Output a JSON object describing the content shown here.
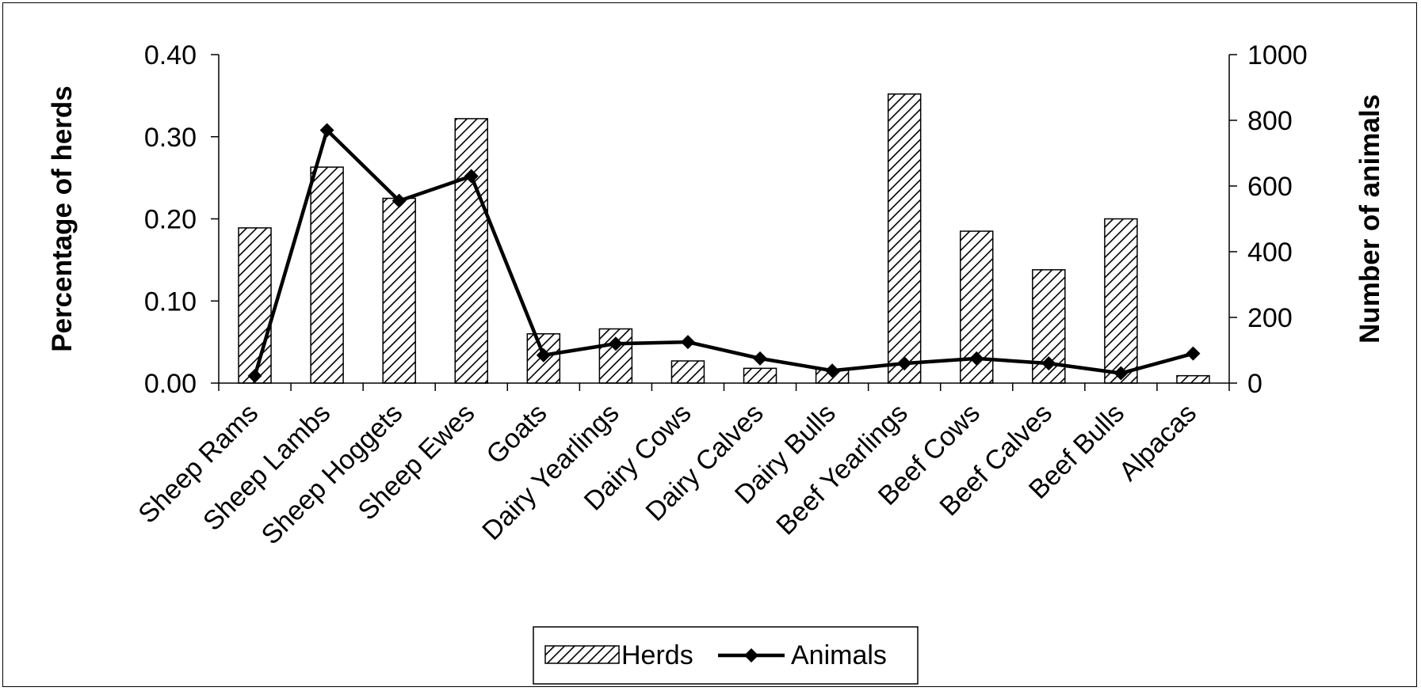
{
  "chart_data": {
    "type": "bar",
    "categories": [
      "Sheep Rams",
      "Sheep Lambs",
      "Sheep Hoggets",
      "Sheep Ewes",
      "Goats",
      "Dairy Yearlings",
      "Dairy Cows",
      "Dairy Calves",
      "Dairy Bulls",
      "Beef Yearlings",
      "Beef Cows",
      "Beef Calves",
      "Beef Bulls",
      "Alpacas"
    ],
    "series": [
      {
        "name": "Herds",
        "type": "bar",
        "axis": "left",
        "pattern": "diagonal-hatch",
        "values": [
          0.189,
          0.263,
          0.225,
          0.322,
          0.06,
          0.066,
          0.027,
          0.018,
          0.017,
          0.352,
          0.185,
          0.138,
          0.2,
          0.009
        ]
      },
      {
        "name": "Animals",
        "type": "line",
        "axis": "right",
        "marker": "diamond",
        "values": [
          22,
          770,
          555,
          630,
          85,
          120,
          125,
          75,
          38,
          60,
          75,
          60,
          30,
          90
        ]
      }
    ],
    "ylabel": "Percentage of herds",
    "y2label": "Number of animals",
    "ylim": [
      0,
      0.4
    ],
    "y2lim": [
      0,
      1000
    ],
    "yticks": [
      "0.00",
      "0.10",
      "0.20",
      "0.30",
      "0.40"
    ],
    "y2ticks": [
      "0",
      "200",
      "400",
      "600",
      "800",
      "1000"
    ],
    "grid": false,
    "legend_position": "bottom-center",
    "colors": {
      "line": "#000000",
      "bar_fill": "#ffffff",
      "hatch": "#000000"
    }
  }
}
